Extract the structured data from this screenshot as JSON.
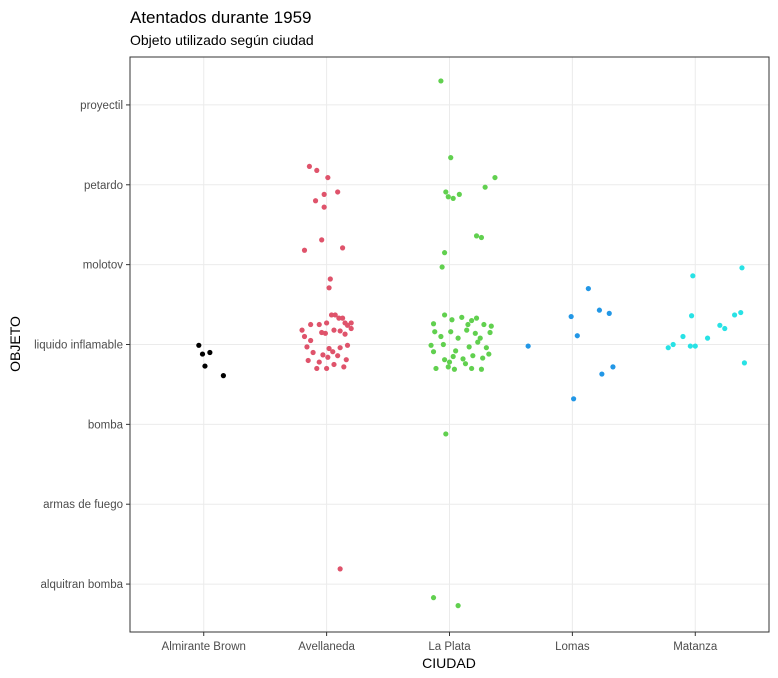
{
  "chart_data": {
    "type": "scatter",
    "title": "Atentados durante 1959",
    "subtitle": "Objeto utilizado según ciudad",
    "xlabel": "CIUDAD",
    "ylabel": "OBJETO",
    "categories_x": [
      "Almirante Brown",
      "Avellaneda",
      "La Plata",
      "Lomas",
      "Matanza"
    ],
    "categories_y": [
      "alquitran bomba",
      "armas de fuego",
      "bomba",
      "liquido inflamable",
      "molotov",
      "petardo",
      "proyectil"
    ],
    "grid": true,
    "legend": "none",
    "point_colors": {
      "Almirante Brown": "#000000",
      "Avellaneda": "#df536b",
      "La Plata": "#61d04f",
      "Lomas": "#2297e6",
      "Matanza": "#28e2e5"
    },
    "points": [
      {
        "city": "Almirante Brown",
        "object": "bomba",
        "x": 0.96,
        "y": 2.99
      },
      {
        "city": "Almirante Brown",
        "object": "bomba",
        "x": 1.16,
        "y": 2.61
      },
      {
        "city": "Almirante Brown",
        "object": "bomba",
        "x": 1.05,
        "y": 2.9
      },
      {
        "city": "Almirante Brown",
        "object": "bomba",
        "x": 1.01,
        "y": 2.73
      },
      {
        "city": "Almirante Brown",
        "object": "bomba",
        "x": 0.99,
        "y": 2.88
      },
      {
        "city": "Avellaneda",
        "object": "proyectil",
        "x": 0,
        "y": 0,
        "skip": true
      },
      {
        "city": "Avellaneda",
        "object": "petardo",
        "x": 1.86,
        "y": 5.23
      },
      {
        "city": "Avellaneda",
        "object": "petardo",
        "x": 1.92,
        "y": 5.18
      },
      {
        "city": "Avellaneda",
        "object": "petardo",
        "x": 2.01,
        "y": 5.09
      },
      {
        "city": "Avellaneda",
        "object": "petardo",
        "x": 2.09,
        "y": 4.91
      },
      {
        "city": "Avellaneda",
        "object": "petardo",
        "x": 1.98,
        "y": 4.88
      },
      {
        "city": "Avellaneda",
        "object": "petardo",
        "x": 1.91,
        "y": 4.8
      },
      {
        "city": "Avellaneda",
        "object": "petardo",
        "x": 1.98,
        "y": 4.72
      },
      {
        "city": "Avellaneda",
        "object": "molotov",
        "x": 1.96,
        "y": 4.31
      },
      {
        "city": "Avellaneda",
        "object": "molotov",
        "x": 1.82,
        "y": 4.18
      },
      {
        "city": "Avellaneda",
        "object": "molotov",
        "x": 2.13,
        "y": 4.21
      },
      {
        "city": "Avellaneda",
        "object": "molotov",
        "x": 2.03,
        "y": 3.82
      },
      {
        "city": "Avellaneda",
        "object": "molotov",
        "x": 2.02,
        "y": 3.71
      },
      {
        "city": "Avellaneda",
        "object": "liquido inflamable",
        "x": 1.99,
        "y": 3.14
      },
      {
        "city": "Avellaneda",
        "object": "alquitran bomba",
        "x": 2.11,
        "y": 0.19
      },
      {
        "city": "Avellaneda",
        "object": "bomba",
        "x": 1.8,
        "y": 3.18
      },
      {
        "city": "Avellaneda",
        "object": "bomba",
        "x": 1.87,
        "y": 3.25
      },
      {
        "city": "Avellaneda",
        "object": "bomba",
        "x": 1.94,
        "y": 3.25
      },
      {
        "city": "Avellaneda",
        "object": "bomba",
        "x": 2.0,
        "y": 3.27
      },
      {
        "city": "Avellaneda",
        "object": "bomba",
        "x": 2.04,
        "y": 3.37
      },
      {
        "city": "Avellaneda",
        "object": "bomba",
        "x": 2.07,
        "y": 3.37
      },
      {
        "city": "Avellaneda",
        "object": "bomba",
        "x": 2.1,
        "y": 3.33
      },
      {
        "city": "Avellaneda",
        "object": "bomba",
        "x": 2.13,
        "y": 3.33
      },
      {
        "city": "Avellaneda",
        "object": "bomba",
        "x": 2.15,
        "y": 3.27
      },
      {
        "city": "Avellaneda",
        "object": "bomba",
        "x": 2.17,
        "y": 3.24
      },
      {
        "city": "Avellaneda",
        "object": "bomba",
        "x": 2.2,
        "y": 3.27
      },
      {
        "city": "Avellaneda",
        "object": "bomba",
        "x": 1.82,
        "y": 3.1
      },
      {
        "city": "Avellaneda",
        "object": "bomba",
        "x": 1.87,
        "y": 3.05
      },
      {
        "city": "Avellaneda",
        "object": "bomba",
        "x": 1.96,
        "y": 3.15
      },
      {
        "city": "Avellaneda",
        "object": "bomba",
        "x": 2.06,
        "y": 3.18
      },
      {
        "city": "Avellaneda",
        "object": "bomba",
        "x": 2.11,
        "y": 3.17
      },
      {
        "city": "Avellaneda",
        "object": "bomba",
        "x": 2.15,
        "y": 3.13
      },
      {
        "city": "Avellaneda",
        "object": "bomba",
        "x": 2.2,
        "y": 3.2
      },
      {
        "city": "Avellaneda",
        "object": "bomba",
        "x": 1.84,
        "y": 2.97
      },
      {
        "city": "Avellaneda",
        "object": "bomba",
        "x": 1.89,
        "y": 2.9
      },
      {
        "city": "Avellaneda",
        "object": "bomba",
        "x": 1.97,
        "y": 2.87
      },
      {
        "city": "Avellaneda",
        "object": "bomba",
        "x": 2.02,
        "y": 2.95
      },
      {
        "city": "Avellaneda",
        "object": "bomba",
        "x": 2.05,
        "y": 2.91
      },
      {
        "city": "Avellaneda",
        "object": "bomba",
        "x": 2.11,
        "y": 2.96
      },
      {
        "city": "Avellaneda",
        "object": "bomba",
        "x": 2.17,
        "y": 2.99
      },
      {
        "city": "Avellaneda",
        "object": "bomba",
        "x": 1.85,
        "y": 2.8
      },
      {
        "city": "Avellaneda",
        "object": "bomba",
        "x": 1.94,
        "y": 2.78
      },
      {
        "city": "Avellaneda",
        "object": "bomba",
        "x": 2.01,
        "y": 2.84
      },
      {
        "city": "Avellaneda",
        "object": "bomba",
        "x": 2.09,
        "y": 2.86
      },
      {
        "city": "Avellaneda",
        "object": "bomba",
        "x": 2.16,
        "y": 2.81
      },
      {
        "city": "Avellaneda",
        "object": "bomba",
        "x": 1.92,
        "y": 2.7
      },
      {
        "city": "Avellaneda",
        "object": "bomba",
        "x": 2.0,
        "y": 2.7
      },
      {
        "city": "Avellaneda",
        "object": "bomba",
        "x": 2.06,
        "y": 2.75
      },
      {
        "city": "Avellaneda",
        "object": "bomba",
        "x": 2.14,
        "y": 2.72
      },
      {
        "city": "La Plata",
        "object": "proyectil",
        "x": 2.93,
        "y": 6.3
      },
      {
        "city": "La Plata",
        "object": "petardo",
        "x": 3.01,
        "y": 5.34
      },
      {
        "city": "La Plata",
        "object": "petardo",
        "x": 3.37,
        "y": 5.09
      },
      {
        "city": "La Plata",
        "object": "petardo",
        "x": 3.29,
        "y": 4.97
      },
      {
        "city": "La Plata",
        "object": "petardo",
        "x": 2.97,
        "y": 4.91
      },
      {
        "city": "La Plata",
        "object": "petardo",
        "x": 2.99,
        "y": 4.85
      },
      {
        "city": "La Plata",
        "object": "petardo",
        "x": 3.03,
        "y": 4.83
      },
      {
        "city": "La Plata",
        "object": "petardo",
        "x": 3.08,
        "y": 4.88
      },
      {
        "city": "La Plata",
        "object": "petardo",
        "x": 3.22,
        "y": 4.36
      },
      {
        "city": "La Plata",
        "object": "petardo",
        "x": 3.26,
        "y": 4.34
      },
      {
        "city": "La Plata",
        "object": "molotov",
        "x": 2.96,
        "y": 4.15
      },
      {
        "city": "La Plata",
        "object": "molotov",
        "x": 2.94,
        "y": 3.97
      },
      {
        "city": "La Plata",
        "object": "armas de fuego",
        "x": 2.97,
        "y": 1.88
      },
      {
        "city": "La Plata",
        "object": "alquitran bomba",
        "x": 2.87,
        "y": -0.17
      },
      {
        "city": "La Plata",
        "object": "alquitran bomba",
        "x": 3.07,
        "y": -0.27
      },
      {
        "city": "La Plata",
        "object": "bomba",
        "x": 2.87,
        "y": 3.26
      },
      {
        "city": "La Plata",
        "object": "bomba",
        "x": 2.96,
        "y": 3.37
      },
      {
        "city": "La Plata",
        "object": "bomba",
        "x": 3.02,
        "y": 3.31
      },
      {
        "city": "La Plata",
        "object": "bomba",
        "x": 3.1,
        "y": 3.34
      },
      {
        "city": "La Plata",
        "object": "bomba",
        "x": 3.15,
        "y": 3.25
      },
      {
        "city": "La Plata",
        "object": "bomba",
        "x": 3.18,
        "y": 3.3
      },
      {
        "city": "La Plata",
        "object": "bomba",
        "x": 3.22,
        "y": 3.33
      },
      {
        "city": "La Plata",
        "object": "bomba",
        "x": 3.28,
        "y": 3.25
      },
      {
        "city": "La Plata",
        "object": "bomba",
        "x": 3.34,
        "y": 3.23
      },
      {
        "city": "La Plata",
        "object": "bomba",
        "x": 2.88,
        "y": 3.16
      },
      {
        "city": "La Plata",
        "object": "bomba",
        "x": 2.93,
        "y": 3.1
      },
      {
        "city": "La Plata",
        "object": "bomba",
        "x": 3.01,
        "y": 3.16
      },
      {
        "city": "La Plata",
        "object": "bomba",
        "x": 3.07,
        "y": 3.08
      },
      {
        "city": "La Plata",
        "object": "bomba",
        "x": 3.14,
        "y": 3.18
      },
      {
        "city": "La Plata",
        "object": "bomba",
        "x": 3.21,
        "y": 3.14
      },
      {
        "city": "La Plata",
        "object": "bomba",
        "x": 3.25,
        "y": 3.08
      },
      {
        "city": "La Plata",
        "object": "bomba",
        "x": 3.33,
        "y": 3.15
      },
      {
        "city": "La Plata",
        "object": "bomba",
        "x": 2.85,
        "y": 2.99
      },
      {
        "city": "La Plata",
        "object": "bomba",
        "x": 2.95,
        "y": 3.0
      },
      {
        "city": "La Plata",
        "object": "bomba",
        "x": 3.05,
        "y": 2.92
      },
      {
        "city": "La Plata",
        "object": "bomba",
        "x": 3.16,
        "y": 2.97
      },
      {
        "city": "La Plata",
        "object": "bomba",
        "x": 3.23,
        "y": 3.03
      },
      {
        "city": "La Plata",
        "object": "bomba",
        "x": 3.3,
        "y": 2.96
      },
      {
        "city": "La Plata",
        "object": "bomba",
        "x": 2.87,
        "y": 2.91
      },
      {
        "city": "La Plata",
        "object": "bomba",
        "x": 2.96,
        "y": 2.81
      },
      {
        "city": "La Plata",
        "object": "bomba",
        "x": 3.0,
        "y": 2.78
      },
      {
        "city": "La Plata",
        "object": "bomba",
        "x": 3.03,
        "y": 2.85
      },
      {
        "city": "La Plata",
        "object": "bomba",
        "x": 3.11,
        "y": 2.82
      },
      {
        "city": "La Plata",
        "object": "bomba",
        "x": 3.19,
        "y": 2.86
      },
      {
        "city": "La Plata",
        "object": "bomba",
        "x": 3.27,
        "y": 2.83
      },
      {
        "city": "La Plata",
        "object": "bomba",
        "x": 3.32,
        "y": 2.88
      },
      {
        "city": "La Plata",
        "object": "bomba",
        "x": 2.89,
        "y": 2.7
      },
      {
        "city": "La Plata",
        "object": "bomba",
        "x": 2.99,
        "y": 2.72
      },
      {
        "city": "La Plata",
        "object": "bomba",
        "x": 3.04,
        "y": 2.69
      },
      {
        "city": "La Plata",
        "object": "bomba",
        "x": 3.13,
        "y": 2.76
      },
      {
        "city": "La Plata",
        "object": "bomba",
        "x": 3.18,
        "y": 2.7
      },
      {
        "city": "La Plata",
        "object": "bomba",
        "x": 3.26,
        "y": 2.69
      },
      {
        "city": "Lomas",
        "object": "molotov",
        "x": 4.13,
        "y": 3.7
      },
      {
        "city": "Lomas",
        "object": "bomba",
        "x": 4.22,
        "y": 3.43
      },
      {
        "city": "Lomas",
        "object": "bomba",
        "x": 4.3,
        "y": 3.39
      },
      {
        "city": "Lomas",
        "object": "bomba",
        "x": 3.99,
        "y": 3.35
      },
      {
        "city": "Lomas",
        "object": "bomba",
        "x": 4.04,
        "y": 3.11
      },
      {
        "city": "Lomas",
        "object": "bomba",
        "x": 3.64,
        "y": 2.98
      },
      {
        "city": "Lomas",
        "object": "bomba",
        "x": 4.33,
        "y": 2.72
      },
      {
        "city": "Lomas",
        "object": "bomba",
        "x": 4.24,
        "y": 2.63
      },
      {
        "city": "Lomas",
        "object": "bomba",
        "x": 4.01,
        "y": 2.32
      },
      {
        "city": "Matanza",
        "object": "molotov",
        "x": 4.98,
        "y": 3.86
      },
      {
        "city": "Matanza",
        "object": "molotov",
        "x": 5.38,
        "y": 3.96
      },
      {
        "city": "Matanza",
        "object": "bomba",
        "x": 5.37,
        "y": 3.4
      },
      {
        "city": "Matanza",
        "object": "bomba",
        "x": 5.32,
        "y": 3.37
      },
      {
        "city": "Matanza",
        "object": "bomba",
        "x": 4.97,
        "y": 3.36
      },
      {
        "city": "Matanza",
        "object": "bomba",
        "x": 5.2,
        "y": 3.24
      },
      {
        "city": "Matanza",
        "object": "bomba",
        "x": 5.24,
        "y": 3.2
      },
      {
        "city": "Matanza",
        "object": "bomba",
        "x": 4.9,
        "y": 3.1
      },
      {
        "city": "Matanza",
        "object": "bomba",
        "x": 5.1,
        "y": 3.08
      },
      {
        "city": "Matanza",
        "object": "bomba",
        "x": 4.82,
        "y": 3.0
      },
      {
        "city": "Matanza",
        "object": "bomba",
        "x": 4.96,
        "y": 2.98
      },
      {
        "city": "Matanza",
        "object": "bomba",
        "x": 5.0,
        "y": 2.98
      },
      {
        "city": "Matanza",
        "object": "bomba",
        "x": 4.78,
        "y": 2.96
      },
      {
        "city": "Matanza",
        "object": "bomba",
        "x": 5.4,
        "y": 2.77
      }
    ]
  }
}
